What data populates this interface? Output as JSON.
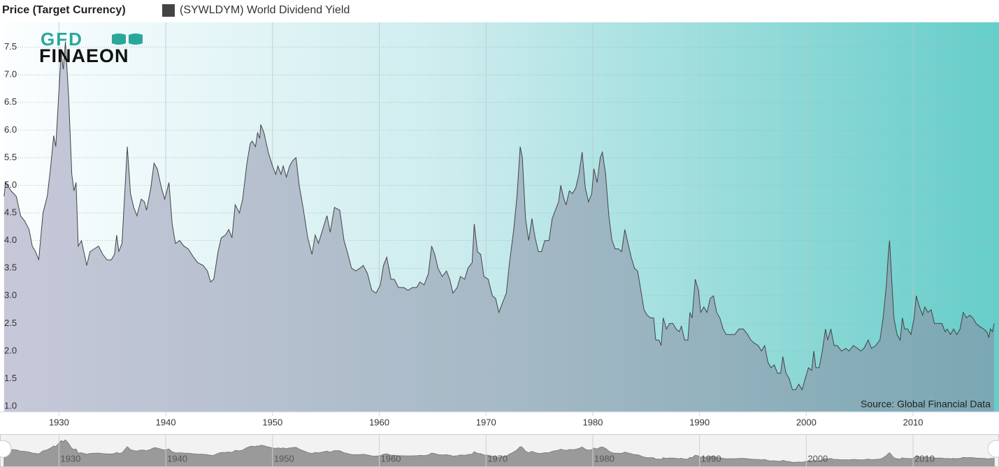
{
  "chart_data": {
    "type": "area",
    "legend_title": "Price (Target Currency)",
    "logo": {
      "top": "GFD",
      "bottom": "FINAEON"
    },
    "source": "Source: Global Financial Data",
    "x": [
      1924.85,
      1925.0,
      1925.5,
      1926.0,
      1926.4,
      1926.8,
      1927.2,
      1927.5,
      1927.8,
      1928.1,
      1928.5,
      1928.9,
      1929.2,
      1929.5,
      1929.7,
      1929.9,
      1930.2,
      1930.4,
      1930.6,
      1930.9,
      1931.2,
      1931.4,
      1931.6,
      1931.8,
      1932.1,
      1932.6,
      1932.9,
      1933.3,
      1933.7,
      1934.1,
      1934.5,
      1934.9,
      1935.2,
      1935.4,
      1935.6,
      1935.9,
      1936.4,
      1936.7,
      1937.0,
      1937.3,
      1937.7,
      1938.0,
      1938.2,
      1938.6,
      1938.9,
      1939.2,
      1939.6,
      1939.9,
      1940.3,
      1940.6,
      1940.9,
      1941.3,
      1941.7,
      1942.1,
      1942.6,
      1943.0,
      1943.5,
      1943.9,
      1944.2,
      1944.5,
      1944.9,
      1945.2,
      1945.6,
      1945.9,
      1946.2,
      1946.5,
      1946.9,
      1947.2,
      1947.6,
      1947.9,
      1948.1,
      1948.4,
      1948.6,
      1948.8,
      1948.9,
      1949.2,
      1949.6,
      1950.0,
      1950.3,
      1950.5,
      1950.8,
      1951.0,
      1951.3,
      1951.6,
      1951.9,
      1952.2,
      1952.5,
      1952.9,
      1953.3,
      1953.7,
      1954.0,
      1954.3,
      1954.7,
      1955.1,
      1955.4,
      1955.8,
      1956.3,
      1956.7,
      1957.0,
      1957.4,
      1957.8,
      1958.2,
      1958.5,
      1958.9,
      1959.3,
      1959.7,
      1960.1,
      1960.4,
      1960.7,
      1961.1,
      1961.4,
      1961.8,
      1962.3,
      1962.7,
      1963.1,
      1963.5,
      1963.8,
      1964.2,
      1964.6,
      1964.9,
      1965.2,
      1965.5,
      1965.9,
      1966.3,
      1966.6,
      1966.9,
      1967.3,
      1967.6,
      1968.0,
      1968.3,
      1968.7,
      1968.9,
      1969.2,
      1969.5,
      1969.8,
      1970.2,
      1970.6,
      1970.9,
      1971.2,
      1971.5,
      1971.9,
      1972.2,
      1972.6,
      1972.9,
      1973.2,
      1973.4,
      1973.7,
      1974.0,
      1974.3,
      1974.6,
      1974.9,
      1975.2,
      1975.5,
      1975.9,
      1976.2,
      1976.5,
      1976.8,
      1977.0,
      1977.3,
      1977.5,
      1977.8,
      1978.1,
      1978.4,
      1978.7,
      1979.0,
      1979.3,
      1979.6,
      1979.9,
      1980.1,
      1980.4,
      1980.7,
      1980.9,
      1981.2,
      1981.5,
      1981.8,
      1982.1,
      1982.4,
      1982.7,
      1983.0,
      1983.3,
      1983.6,
      1983.9,
      1984.2,
      1984.5,
      1984.8,
      1985.1,
      1985.4,
      1985.7,
      1985.9,
      1986.2,
      1986.4,
      1986.6,
      1986.9,
      1987.2,
      1987.5,
      1987.8,
      1988.1,
      1988.3,
      1988.6,
      1988.9,
      1989.1,
      1989.3,
      1989.6,
      1989.9,
      1990.1,
      1990.4,
      1990.7,
      1991.0,
      1991.3,
      1991.6,
      1991.9,
      1992.2,
      1992.5,
      1992.9,
      1993.3,
      1993.7,
      1994.1,
      1994.5,
      1994.8,
      1995.1,
      1995.5,
      1995.8,
      1996.1,
      1996.4,
      1996.7,
      1997.0,
      1997.3,
      1997.6,
      1997.8,
      1998.1,
      1998.4,
      1998.7,
      1999.0,
      1999.3,
      1999.6,
      1999.9,
      2000.2,
      2000.5,
      2000.7,
      2000.9,
      2001.2,
      2001.5,
      2001.8,
      2002.0,
      2002.3,
      2002.6,
      2002.9,
      2003.3,
      2003.7,
      2004.0,
      2004.4,
      2004.8,
      2005.1,
      2005.4,
      2005.8,
      2006.1,
      2006.5,
      2006.9,
      2007.2,
      2007.5,
      2007.7,
      2007.8,
      2008.0,
      2008.2,
      2008.5,
      2008.8,
      2009.0,
      2009.2,
      2009.5,
      2009.8,
      2010.1,
      2010.3,
      2010.6,
      2010.9,
      2011.1,
      2011.4,
      2011.7,
      2012.0,
      2012.4,
      2012.7,
      2013.0,
      2013.2,
      2013.5,
      2013.8,
      2014.1,
      2014.4,
      2014.7,
      2015.0,
      2015.3,
      2015.6,
      2015.9,
      2016.2,
      2016.6,
      2016.9,
      2017.1,
      2017.25,
      2017.45,
      2017.6
    ],
    "series": [
      {
        "name": "(SYWLDYM) World Dividend Yield",
        "color": "#444444",
        "values": [
          4.8,
          5.05,
          4.9,
          4.8,
          4.45,
          4.35,
          4.2,
          3.9,
          3.8,
          3.65,
          4.5,
          4.8,
          5.3,
          5.9,
          5.7,
          6.4,
          7.4,
          7.1,
          7.6,
          6.6,
          5.2,
          4.9,
          5.05,
          3.9,
          4.0,
          3.55,
          3.8,
          3.85,
          3.9,
          3.75,
          3.65,
          3.65,
          3.75,
          4.1,
          3.8,
          3.95,
          5.7,
          4.85,
          4.6,
          4.45,
          4.75,
          4.7,
          4.55,
          4.95,
          5.4,
          5.3,
          4.95,
          4.75,
          5.05,
          4.3,
          3.95,
          4.0,
          3.9,
          3.85,
          3.7,
          3.6,
          3.55,
          3.45,
          3.25,
          3.3,
          3.8,
          4.05,
          4.1,
          4.2,
          4.05,
          4.65,
          4.5,
          4.75,
          5.4,
          5.75,
          5.8,
          5.7,
          5.95,
          5.85,
          6.1,
          5.95,
          5.6,
          5.35,
          5.2,
          5.35,
          5.2,
          5.35,
          5.15,
          5.35,
          5.45,
          5.5,
          5.0,
          4.55,
          4.05,
          3.75,
          4.1,
          3.95,
          4.2,
          4.45,
          4.15,
          4.6,
          4.55,
          4.0,
          3.8,
          3.5,
          3.45,
          3.5,
          3.55,
          3.4,
          3.1,
          3.05,
          3.2,
          3.55,
          3.7,
          3.3,
          3.3,
          3.15,
          3.15,
          3.1,
          3.15,
          3.15,
          3.25,
          3.2,
          3.4,
          3.9,
          3.75,
          3.5,
          3.35,
          3.45,
          3.3,
          3.05,
          3.15,
          3.35,
          3.3,
          3.5,
          3.6,
          4.3,
          3.8,
          3.75,
          3.35,
          3.3,
          3.0,
          2.95,
          2.7,
          2.85,
          3.05,
          3.6,
          4.2,
          4.8,
          5.7,
          5.5,
          4.4,
          4.0,
          4.4,
          4.05,
          3.8,
          3.8,
          4.0,
          4.0,
          4.4,
          4.55,
          4.7,
          5.0,
          4.75,
          4.65,
          4.9,
          4.85,
          4.95,
          5.2,
          5.6,
          4.95,
          4.7,
          4.85,
          5.3,
          5.05,
          5.5,
          5.6,
          5.2,
          4.45,
          4.0,
          3.85,
          3.85,
          3.8,
          4.2,
          3.95,
          3.7,
          3.5,
          3.45,
          3.1,
          2.75,
          2.65,
          2.6,
          2.6,
          2.2,
          2.2,
          2.1,
          2.6,
          2.4,
          2.5,
          2.5,
          2.4,
          2.35,
          2.45,
          2.2,
          2.2,
          2.7,
          2.6,
          3.3,
          3.1,
          2.7,
          2.8,
          2.7,
          2.95,
          3.0,
          2.7,
          2.6,
          2.4,
          2.3,
          2.3,
          2.3,
          2.4,
          2.4,
          2.3,
          2.2,
          2.15,
          2.1,
          2.0,
          2.1,
          1.8,
          1.7,
          1.75,
          1.6,
          1.6,
          1.9,
          1.6,
          1.5,
          1.3,
          1.3,
          1.4,
          1.3,
          1.5,
          1.7,
          1.65,
          2.0,
          1.7,
          1.7,
          2.0,
          2.4,
          2.2,
          2.4,
          2.1,
          2.1,
          2.0,
          2.05,
          2.0,
          2.1,
          2.05,
          2.0,
          2.05,
          2.2,
          2.05,
          2.1,
          2.2,
          2.6,
          3.2,
          3.8,
          4.0,
          3.3,
          2.6,
          2.3,
          2.2,
          2.6,
          2.4,
          2.4,
          2.3,
          2.6,
          3.0,
          2.8,
          2.65,
          2.8,
          2.7,
          2.75,
          2.5,
          2.5,
          2.5,
          2.35,
          2.4,
          2.3,
          2.4,
          2.3,
          2.4,
          2.7,
          2.6,
          2.65,
          2.6,
          2.5,
          2.45,
          2.4,
          2.35,
          2.25,
          2.4,
          2.35,
          2.5
        ]
      }
    ],
    "xlim": [
      1924.8,
      2018.05
    ],
    "xticks": [
      1930,
      1940,
      1950,
      1960,
      1970,
      1980,
      1990,
      2000,
      2010
    ],
    "ylim": [
      0.9,
      7.95
    ],
    "yticks": [
      {
        "value": 1,
        "label": "1.0"
      },
      1.5,
      {
        "value": 2,
        "label": "2.0"
      },
      2.5,
      {
        "value": 3,
        "label": "3.0"
      },
      3.5,
      {
        "value": 4,
        "label": "4.0"
      },
      4.5,
      {
        "value": 5,
        "label": "5.0"
      },
      5.5,
      {
        "value": 6,
        "label": "6.0"
      },
      6.5,
      {
        "value": 7,
        "label": "7.0"
      },
      7.5
    ],
    "grid": true
  }
}
